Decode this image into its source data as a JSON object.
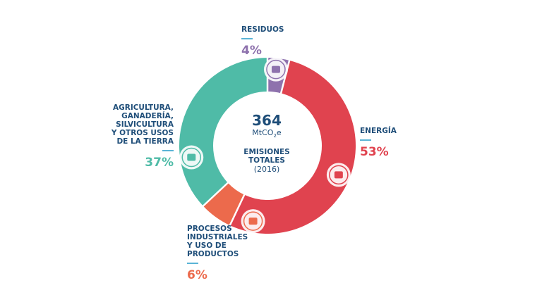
{
  "chart_data": {
    "type": "pie",
    "title": "",
    "center": {
      "total": "364",
      "unit_main": "MtCO",
      "unit_sub": "2",
      "unit_end": "e",
      "heading_line1": "EMISIONES",
      "heading_line2": "TOTALES",
      "year": "(2016)"
    },
    "slices": [
      {
        "key": "residuos",
        "label_lines": [
          "RESIDUOS"
        ],
        "value": 4,
        "display": "4%",
        "color": "#8e72ad",
        "icon": "waste-bags-icon"
      },
      {
        "key": "energia",
        "label_lines": [
          "ENERGÍA"
        ],
        "value": 53,
        "display": "53%",
        "color": "#e0434f",
        "icon": "power-plant-icon"
      },
      {
        "key": "procesos",
        "label_lines": [
          "PROCESOS",
          "INDUSTRIALES",
          "Y USO DE",
          "PRODUCTOS"
        ],
        "value": 6,
        "display": "6%",
        "color": "#ec6a4c",
        "icon": "factory-icon"
      },
      {
        "key": "agricultura",
        "label_lines": [
          "AGRICULTURA,",
          "GANADERÍA,",
          "SILVICULTURA",
          "Y OTROS USOS",
          "DE LA TIERRA"
        ],
        "value": 37,
        "display": "37%",
        "color": "#4fbba7",
        "icon": "cow-field-icon"
      }
    ]
  }
}
